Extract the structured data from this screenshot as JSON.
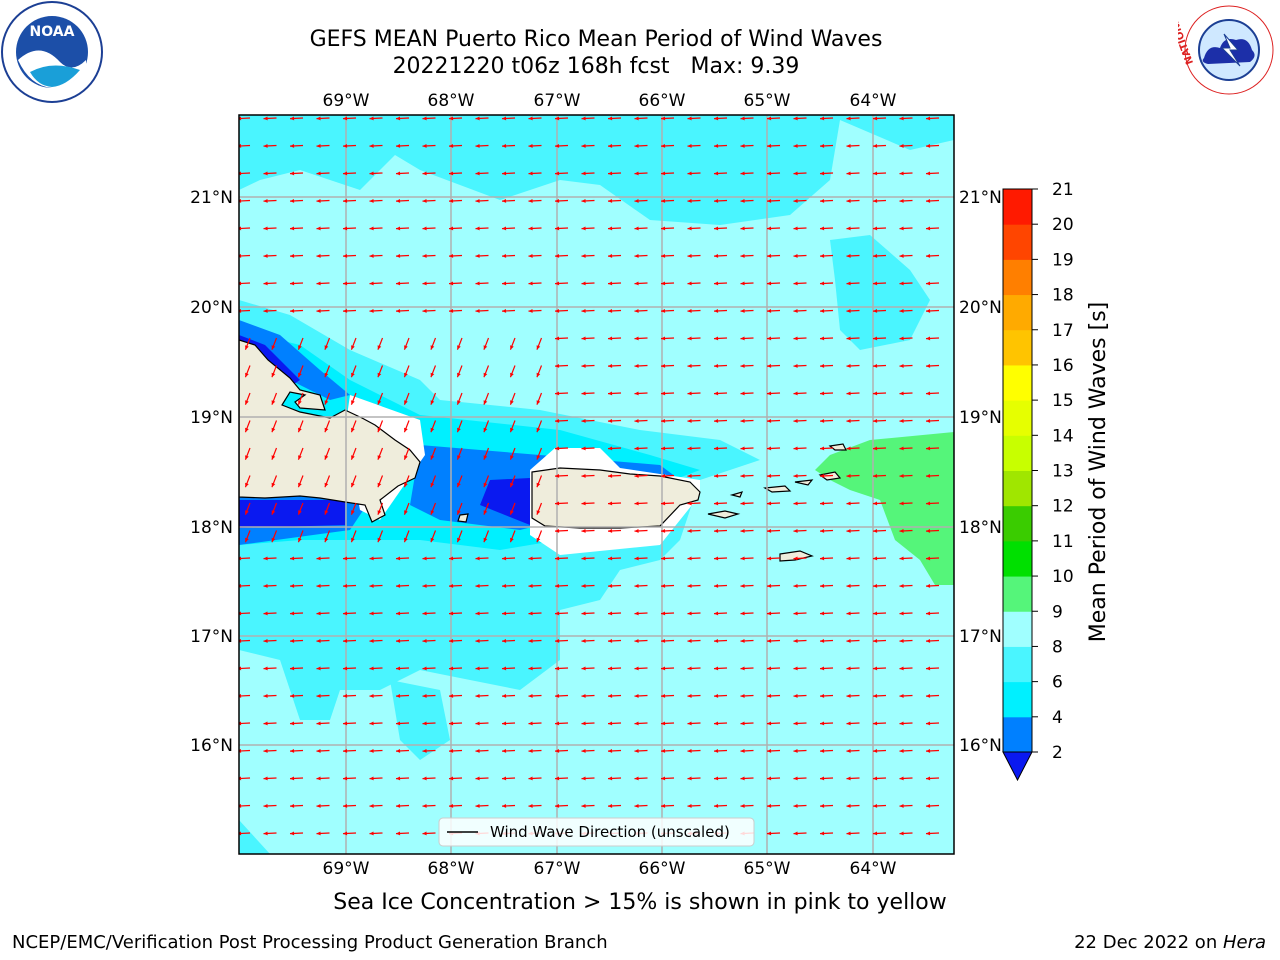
{
  "header": {
    "title": "GEFS MEAN Puerto Rico Mean Period of Wind Waves",
    "subtitle_date": "20221220 t06z 168h fcst",
    "subtitle_max": "Max: 9.39"
  },
  "map": {
    "lon_labels": [
      "69°W",
      "68°W",
      "67°W",
      "66°W",
      "65°W",
      "64°W"
    ],
    "lat_labels": [
      "21°N",
      "20°N",
      "19°N",
      "18°N",
      "17°N",
      "16°N"
    ],
    "legend": "Wind Wave Direction (unscaled)",
    "arrow_color": "#ff0000"
  },
  "colorbar": {
    "label": "Mean Period of Wind Waves [s]",
    "ticks": [
      "2",
      "4",
      "6",
      "8",
      "9",
      "10",
      "11",
      "12",
      "13",
      "14",
      "15",
      "16",
      "17",
      "18",
      "19",
      "20",
      "21"
    ],
    "colors": [
      "#0a19f0",
      "#0080ff",
      "#00f0ff",
      "#4af5ff",
      "#a0ffff",
      "#55f57a",
      "#00e000",
      "#3acc00",
      "#a0e600",
      "#c8ff00",
      "#e6ff00",
      "#ffff00",
      "#ffc400",
      "#ffaa00",
      "#ff7f00",
      "#ff4500",
      "#ff1a00",
      "#ff0000"
    ]
  },
  "footer": {
    "note": "Sea Ice Concentration > 15% is shown in pink to yellow",
    "left": "NCEP/EMC/Verification Post Processing Product Generation Branch",
    "right_date": "22 Dec 2022 on ",
    "right_system": "Hera"
  },
  "logos": {
    "noaa_text": "NOAA",
    "nws_text": "NATIONAL WEATHER SERVICE"
  }
}
